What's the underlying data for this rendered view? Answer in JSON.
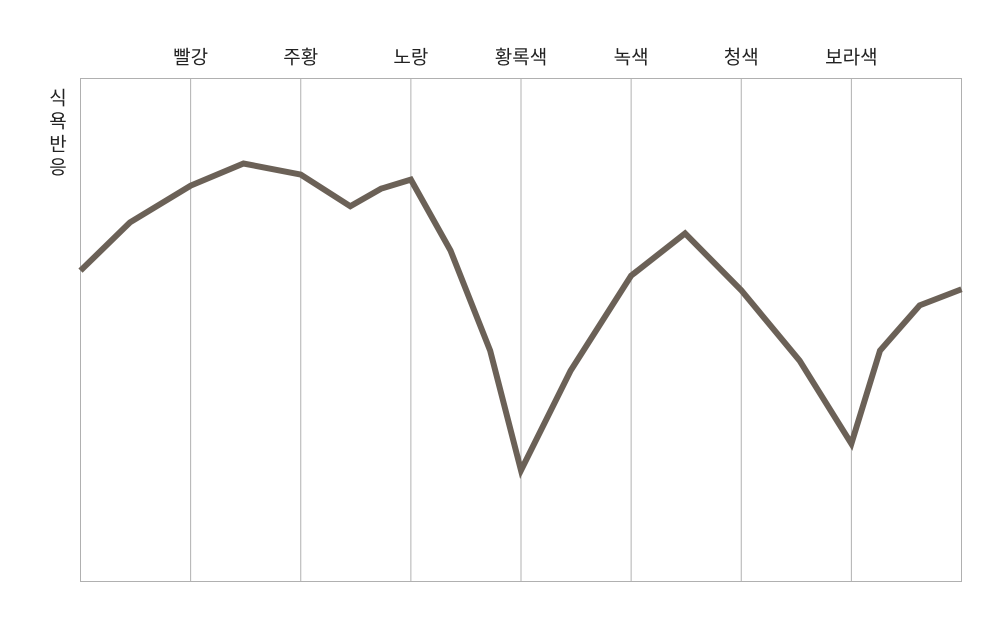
{
  "chart_data": {
    "type": "line",
    "y_label": "식욕반응",
    "xlim": [
      0,
      8
    ],
    "xticks": [
      {
        "value": 1,
        "label": "빨강"
      },
      {
        "value": 2,
        "label": "주황"
      },
      {
        "value": 3,
        "label": "노랑"
      },
      {
        "value": 4,
        "label": "황록색"
      },
      {
        "value": 5,
        "label": "녹색"
      },
      {
        "value": 6,
        "label": "청색"
      },
      {
        "value": 7,
        "label": "보라색"
      }
    ],
    "ylim": [
      0,
      100
    ],
    "grid": true,
    "color": "#6b6157",
    "x": [
      0,
      0.45,
      1,
      1.48,
      2,
      2.45,
      2.73,
      3,
      3.36,
      3.72,
      4,
      4.45,
      5,
      5.49,
      6,
      6.53,
      7,
      7.26,
      7.62,
      8
    ],
    "values": [
      61.8,
      71.4,
      78.7,
      83.1,
      80.9,
      74.6,
      78.1,
      79.9,
      65.8,
      45.9,
      22.1,
      41.9,
      60.8,
      69.2,
      57.9,
      43.9,
      27.4,
      45.9,
      54.9,
      58.1
    ]
  }
}
